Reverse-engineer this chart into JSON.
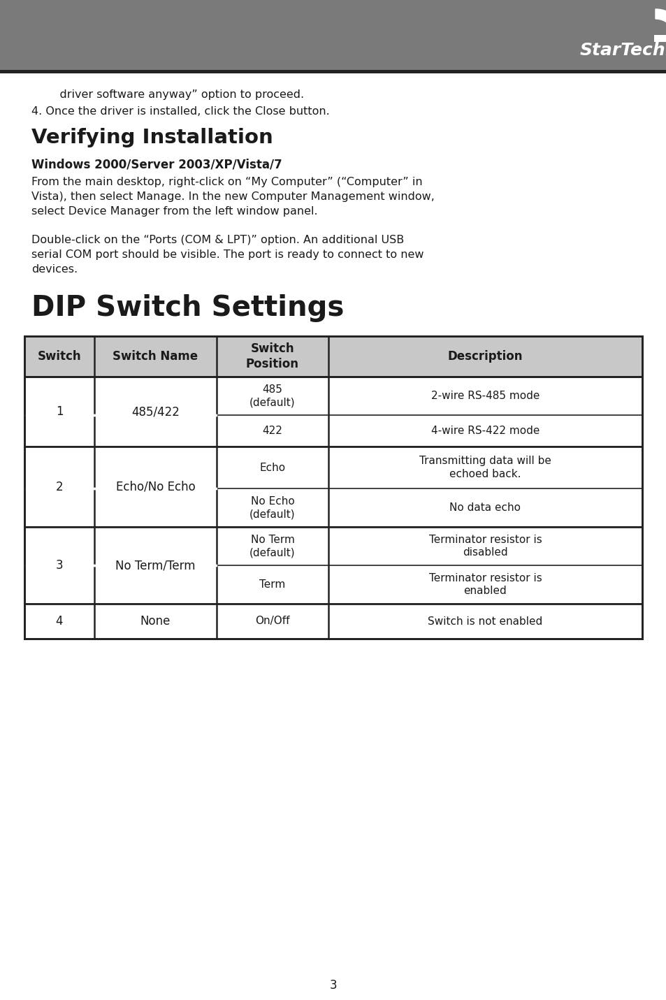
{
  "header_bg": "#7a7a7a",
  "header_text_color": "#ffffff",
  "page_bg": "#ffffff",
  "text_color": "#1a1a1a",
  "table_header_bg": "#c8c8c8",
  "table_border_color": "#222222",
  "line_under_header": "#222222",
  "intro_indent": "    driver software anyway” option to proceed.",
  "intro_line2": "4. Once the driver is installed, click the Close button.",
  "section_title": "Verifying Installation",
  "subsection_title": "Windows 2000/Server 2003/XP/Vista/7",
  "para1_lines": [
    "From the main desktop, right-click on “My Computer” (“Computer” in",
    "Vista), then select Manage. In the new Computer Management window,",
    "select Device Manager from the left window panel."
  ],
  "para2_lines": [
    "Double-click on the “Ports (COM & LPT)” option. An additional USB",
    "serial COM port should be visible. The port is ready to connect to new",
    "devices."
  ],
  "dip_title": "DIP Switch Settings",
  "table_headers": [
    "Switch",
    "Switch Name",
    "Switch\nPosition",
    "Description"
  ],
  "page_number": "3",
  "startech_logo_text": "StarTech.com"
}
